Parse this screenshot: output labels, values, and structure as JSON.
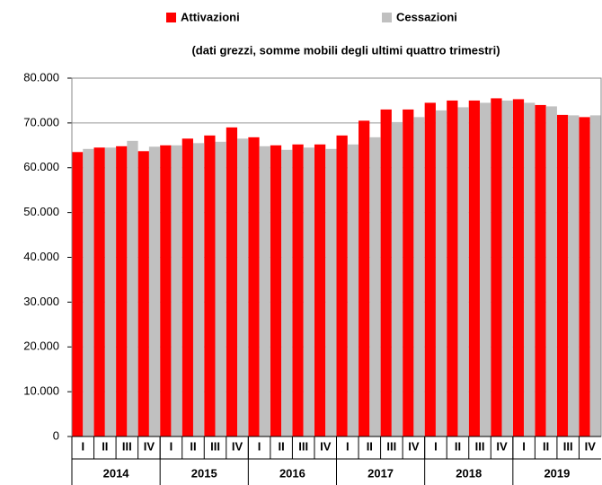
{
  "chart_data": {
    "type": "bar",
    "subtitle": "(dati grezzi, somme mobili degli ultimi quattro trimestri)",
    "categories": [
      "I",
      "II",
      "III",
      "IV",
      "I",
      "II",
      "III",
      "IV",
      "I",
      "II",
      "III",
      "IV",
      "I",
      "II",
      "III",
      "IV",
      "I",
      "II",
      "III",
      "IV",
      "I",
      "II",
      "III",
      "IV"
    ],
    "x_groups": [
      "2014",
      "2015",
      "2016",
      "2017",
      "2018",
      "2019"
    ],
    "series": [
      {
        "name": "Attivazioni",
        "color": "#ff0000",
        "values": [
          63500,
          64500,
          64800,
          63700,
          65000,
          66500,
          67200,
          69000,
          66800,
          65000,
          65200,
          65200,
          67200,
          70500,
          73000,
          73000,
          74500,
          75000,
          75000,
          75500,
          75300,
          74000,
          71800,
          71300
        ]
      },
      {
        "name": "Cessazioni",
        "color": "#c0c0c0",
        "values": [
          64200,
          64500,
          66000,
          64700,
          65000,
          65500,
          65800,
          66500,
          64800,
          64000,
          64500,
          64200,
          65200,
          66800,
          70200,
          71300,
          72800,
          73500,
          74500,
          75000,
          74500,
          73700,
          71700,
          71700
        ]
      }
    ],
    "ylim": [
      0,
      80000
    ],
    "yticks": [
      0,
      {
        "value": 10000,
        "label": "10.000"
      },
      {
        "value": 20000,
        "label": "20.000"
      },
      {
        "value": 30000,
        "label": "30.000"
      },
      {
        "value": 40000,
        "label": "40.000"
      },
      {
        "value": 50000,
        "label": "50.000"
      },
      {
        "value": 60000,
        "label": "60.000"
      },
      {
        "value": 70000,
        "label": "70.000"
      },
      {
        "value": 80000,
        "label": "80.000"
      }
    ],
    "grid": true,
    "legend": "top"
  }
}
